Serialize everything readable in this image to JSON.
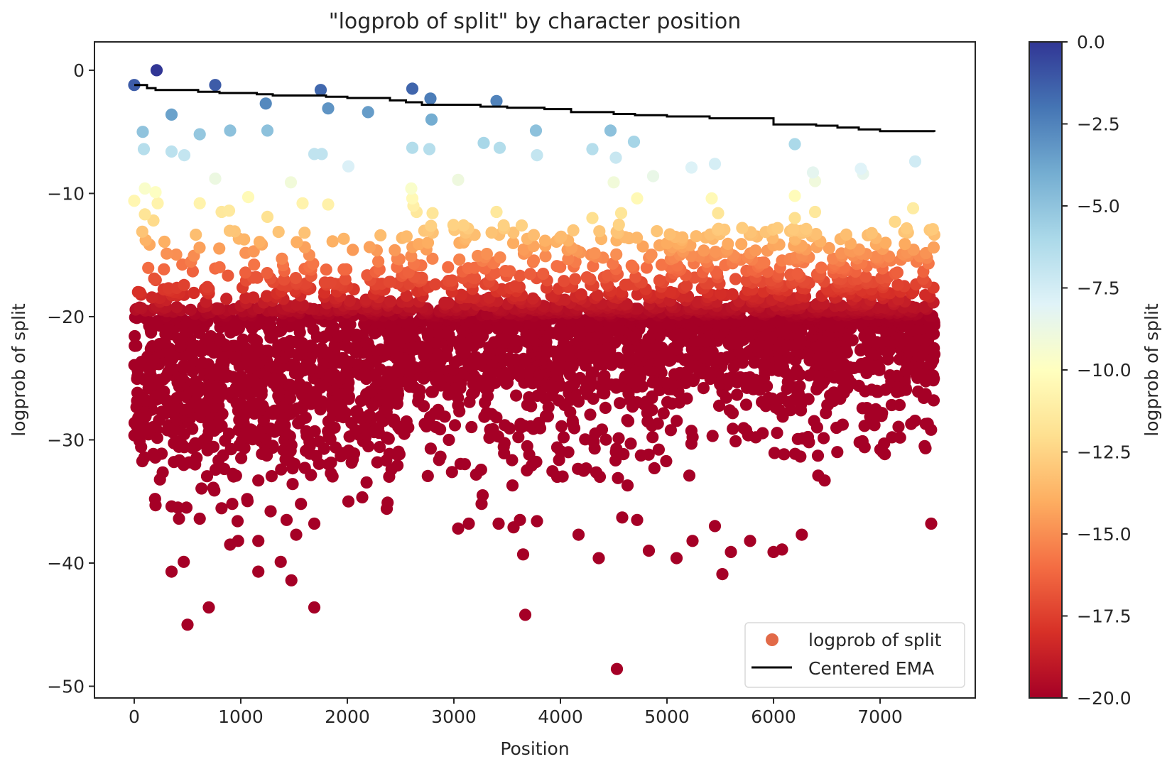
{
  "chart_data": {
    "type": "scatter",
    "title": "\"logprob of split\" by character position",
    "xlabel": "Position",
    "ylabel": "logprob of split",
    "xlim": [
      -373,
      7893
    ],
    "ylim": [
      -50.95,
      2.3
    ],
    "xticks": [
      0,
      1000,
      2000,
      3000,
      4000,
      5000,
      6000,
      7000
    ],
    "xtick_labels": [
      "0",
      "1000",
      "2000",
      "3000",
      "4000",
      "5000",
      "6000",
      "7000"
    ],
    "yticks": [
      0,
      -10,
      -20,
      -30,
      -40,
      -50
    ],
    "ytick_labels": [
      "0",
      "−10",
      "−20",
      "−30",
      "−40",
      "−50"
    ],
    "grid": false,
    "colorbar": {
      "label": "logprob of split",
      "colormap": "RdYlBu",
      "vmin": -20.0,
      "vmax": 0.0,
      "ticks": [
        0.0,
        -2.5,
        -5.0,
        -7.5,
        -10.0,
        -12.5,
        -15.0,
        -17.5,
        -20.0
      ],
      "tick_labels": [
        "0.0",
        "−2.5",
        "−5.0",
        "−7.5",
        "−10.0",
        "−12.5",
        "−15.0",
        "−17.5",
        "−20.0"
      ],
      "colors": [
        "#a50026",
        "#d73027",
        "#f46d43",
        "#fdae61",
        "#fee090",
        "#ffffbf",
        "#e0f3f8",
        "#abd9e9",
        "#74add1",
        "#4575b4",
        "#313695"
      ]
    },
    "legend": {
      "position": "lower-right",
      "entries": [
        {
          "label": "logprob of split",
          "type": "marker",
          "color": "#e26a48"
        },
        {
          "label": "Centered EMA",
          "type": "line",
          "color": "#000000"
        }
      ]
    },
    "series": [
      {
        "name": "logprob of split",
        "kind": "scatter",
        "notable_points": [
          [
            0,
            -1.2
          ],
          [
            210,
            0.0
          ],
          [
            760,
            -1.2
          ],
          [
            1750,
            -1.6
          ],
          [
            2610,
            -1.5
          ],
          [
            1235,
            -2.7
          ],
          [
            2780,
            -2.3
          ],
          [
            3400,
            -2.5
          ],
          [
            1820,
            -3.1
          ],
          [
            2195,
            -3.4
          ],
          [
            350,
            -3.6
          ],
          [
            2790,
            -4.0
          ],
          [
            80,
            -5.0
          ],
          [
            615,
            -5.2
          ],
          [
            900,
            -4.9
          ],
          [
            1250,
            -4.9
          ],
          [
            3770,
            -4.9
          ],
          [
            4470,
            -4.9
          ],
          [
            4690,
            -5.8
          ],
          [
            3280,
            -5.9
          ],
          [
            3430,
            -6.3
          ],
          [
            6200,
            -6.0
          ],
          [
            90,
            -6.4
          ],
          [
            350,
            -6.6
          ],
          [
            470,
            -6.9
          ],
          [
            1690,
            -6.8
          ],
          [
            1760,
            -6.8
          ],
          [
            2610,
            -6.3
          ],
          [
            2770,
            -6.4
          ],
          [
            3780,
            -6.9
          ],
          [
            4300,
            -6.4
          ],
          [
            4520,
            -7.1
          ],
          [
            2010,
            -7.8
          ],
          [
            5230,
            -7.9
          ],
          [
            5450,
            -7.6
          ],
          [
            7330,
            -7.4
          ],
          [
            6820,
            -8.0
          ],
          [
            6840,
            -8.4
          ],
          [
            6370,
            -8.3
          ],
          [
            6390,
            -9.0
          ],
          [
            760,
            -8.8
          ],
          [
            1470,
            -9.1
          ],
          [
            3040,
            -8.9
          ],
          [
            4870,
            -8.6
          ],
          [
            4500,
            -9.1
          ],
          [
            2600,
            -9.6
          ],
          [
            100,
            -9.6
          ],
          [
            200,
            -9.9
          ],
          [
            0,
            -10.6
          ],
          [
            220,
            -10.8
          ],
          [
            615,
            -10.8
          ],
          [
            1070,
            -10.3
          ],
          [
            1580,
            -10.8
          ],
          [
            1820,
            -10.9
          ],
          [
            2610,
            -10.4
          ],
          [
            2620,
            -11.0
          ],
          [
            4720,
            -10.4
          ],
          [
            5420,
            -10.4
          ],
          [
            6200,
            -10.2
          ],
          [
            6390,
            -11.5
          ],
          [
            7310,
            -11.2
          ],
          [
            100,
            -11.7
          ],
          [
            180,
            -12.2
          ],
          [
            820,
            -11.5
          ],
          [
            890,
            -11.4
          ],
          [
            1250,
            -11.9
          ],
          [
            2650,
            -11.5
          ],
          [
            2800,
            -11.6
          ],
          [
            3400,
            -11.5
          ],
          [
            4300,
            -12.0
          ],
          [
            4570,
            -11.6
          ],
          [
            5480,
            -11.6
          ],
          [
            6200,
            -12.0
          ],
          [
            7140,
            -12.3
          ],
          [
            350,
            -35.4
          ],
          [
            410,
            -35.5
          ],
          [
            490,
            -35.5
          ],
          [
            420,
            -36.4
          ],
          [
            615,
            -36.4
          ],
          [
            920,
            -35.2
          ],
          [
            970,
            -36.6
          ],
          [
            1165,
            -33.3
          ],
          [
            1280,
            -35.8
          ],
          [
            1060,
            -34.8
          ],
          [
            1430,
            -36.5
          ],
          [
            1520,
            -37.7
          ],
          [
            1690,
            -36.8
          ],
          [
            1565,
            -35.2
          ],
          [
            2010,
            -35.0
          ],
          [
            2370,
            -35.6
          ],
          [
            350,
            -40.7
          ],
          [
            465,
            -39.9
          ],
          [
            1165,
            -40.7
          ],
          [
            1375,
            -39.9
          ],
          [
            1475,
            -41.4
          ],
          [
            500,
            -45.0
          ],
          [
            700,
            -43.6
          ],
          [
            1690,
            -43.6
          ],
          [
            900,
            -38.5
          ],
          [
            975,
            -38.2
          ],
          [
            1165,
            -38.2
          ],
          [
            3040,
            -37.2
          ],
          [
            3140,
            -36.8
          ],
          [
            3270,
            -34.5
          ],
          [
            3260,
            -35.2
          ],
          [
            3420,
            -36.8
          ],
          [
            3550,
            -33.7
          ],
          [
            3560,
            -37.1
          ],
          [
            3620,
            -36.5
          ],
          [
            3650,
            -39.3
          ],
          [
            3670,
            -44.2
          ],
          [
            3780,
            -36.6
          ],
          [
            3970,
            -33.0
          ],
          [
            4170,
            -37.7
          ],
          [
            4360,
            -39.6
          ],
          [
            4540,
            -33.1
          ],
          [
            4630,
            -33.7
          ],
          [
            4580,
            -36.3
          ],
          [
            4720,
            -36.5
          ],
          [
            4830,
            -39.0
          ],
          [
            4530,
            -48.6
          ],
          [
            5090,
            -39.6
          ],
          [
            5210,
            -32.9
          ],
          [
            5240,
            -38.2
          ],
          [
            5450,
            -37.0
          ],
          [
            5520,
            -40.9
          ],
          [
            5600,
            -39.1
          ],
          [
            5780,
            -38.2
          ],
          [
            6000,
            -39.1
          ],
          [
            6080,
            -38.9
          ],
          [
            6265,
            -37.7
          ],
          [
            6420,
            -32.9
          ],
          [
            6480,
            -33.3
          ],
          [
            7480,
            -36.8
          ]
        ],
        "bulk_distribution": {
          "x_range": [
            0,
            7510
          ],
          "segments": [
            {
              "x_from": 0,
              "x_to": 2500,
              "points": 1150,
              "core_mean": -24.5,
              "core_sd": 3.6,
              "upper_frac": 0.2,
              "upper_range": [
                -19.5,
                -13.0
              ],
              "tail_frac": 0.06,
              "tail_range": [
                -33.0,
                -29.0
              ]
            },
            {
              "x_from": 2500,
              "x_to": 5000,
              "points": 1150,
              "core_mean": -22.5,
              "core_sd": 3.0,
              "upper_frac": 0.3,
              "upper_range": [
                -19.5,
                -12.5
              ],
              "tail_frac": 0.05,
              "tail_range": [
                -33.0,
                -28.0
              ]
            },
            {
              "x_from": 5000,
              "x_to": 7510,
              "points": 1250,
              "core_mean": -21.8,
              "core_sd": 2.8,
              "upper_frac": 0.36,
              "upper_range": [
                -19.5,
                -12.8
              ],
              "tail_frac": 0.05,
              "tail_range": [
                -31.5,
                -27.0
              ]
            }
          ]
        }
      },
      {
        "name": "Centered EMA",
        "kind": "step-line",
        "points": [
          [
            0,
            -1.2
          ],
          [
            120,
            -1.45
          ],
          [
            200,
            -1.6
          ],
          [
            600,
            -1.75
          ],
          [
            800,
            -1.85
          ],
          [
            1150,
            -1.95
          ],
          [
            1300,
            -2.05
          ],
          [
            1800,
            -2.15
          ],
          [
            2000,
            -2.25
          ],
          [
            2400,
            -2.45
          ],
          [
            2550,
            -2.6
          ],
          [
            2700,
            -2.8
          ],
          [
            3250,
            -2.95
          ],
          [
            3500,
            -3.05
          ],
          [
            3850,
            -3.15
          ],
          [
            4100,
            -3.4
          ],
          [
            4500,
            -3.55
          ],
          [
            4700,
            -3.65
          ],
          [
            5000,
            -3.75
          ],
          [
            5400,
            -3.9
          ],
          [
            6000,
            -4.4
          ],
          [
            6400,
            -4.5
          ],
          [
            6600,
            -4.65
          ],
          [
            6800,
            -4.8
          ],
          [
            7000,
            -4.95
          ],
          [
            7510,
            -5.0
          ]
        ]
      }
    ]
  }
}
